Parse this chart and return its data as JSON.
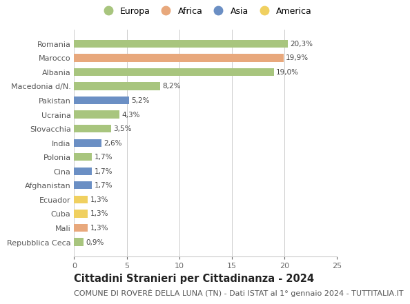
{
  "categories": [
    "Repubblica Ceca",
    "Mali",
    "Cuba",
    "Ecuador",
    "Afghanistan",
    "Cina",
    "Polonia",
    "India",
    "Slovacchia",
    "Ucraina",
    "Pakistan",
    "Macedonia d/N.",
    "Albania",
    "Marocco",
    "Romania"
  ],
  "values": [
    0.9,
    1.3,
    1.3,
    1.3,
    1.7,
    1.7,
    1.7,
    2.6,
    3.5,
    4.3,
    5.2,
    8.2,
    19.0,
    19.9,
    20.3
  ],
  "labels": [
    "0,9%",
    "1,3%",
    "1,3%",
    "1,3%",
    "1,7%",
    "1,7%",
    "1,7%",
    "2,6%",
    "3,5%",
    "4,3%",
    "5,2%",
    "8,2%",
    "19,0%",
    "19,9%",
    "20,3%"
  ],
  "continents": [
    "Europa",
    "Africa",
    "America",
    "America",
    "Asia",
    "Asia",
    "Europa",
    "Asia",
    "Europa",
    "Europa",
    "Asia",
    "Europa",
    "Europa",
    "Africa",
    "Europa"
  ],
  "continent_colors": {
    "Europa": "#a8c57e",
    "Africa": "#e8a87c",
    "Asia": "#6b8fc4",
    "America": "#f0d060"
  },
  "legend_items": [
    "Europa",
    "Africa",
    "Asia",
    "America"
  ],
  "legend_colors": [
    "#a8c57e",
    "#e8a87c",
    "#6b8fc4",
    "#f0d060"
  ],
  "title": "Cittadini Stranieri per Cittadinanza - 2024",
  "subtitle": "COMUNE DI ROVERÈ DELLA LUNA (TN) - Dati ISTAT al 1° gennaio 2024 - TUTTITALIA.IT",
  "xlim": [
    0,
    25
  ],
  "xticks": [
    0,
    5,
    10,
    15,
    20,
    25
  ],
  "background_color": "#ffffff",
  "grid_color": "#cccccc",
  "bar_height": 0.55,
  "title_fontsize": 10.5,
  "subtitle_fontsize": 8,
  "label_fontsize": 7.5,
  "tick_fontsize": 8,
  "legend_fontsize": 9
}
